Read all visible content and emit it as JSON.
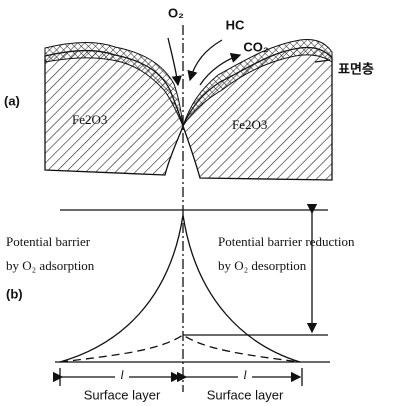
{
  "top": {
    "gases": [
      "O₂",
      "HC",
      "CO₂"
    ],
    "surface_label": "표면층",
    "panel": "(a)",
    "materials": [
      "Fe2O3",
      "Fe2O3"
    ]
  },
  "bottom": {
    "panel": "(b)",
    "left_text": [
      "Potential barrier",
      "by O₂ adsorption"
    ],
    "right_text": [
      "Potential barrier reduction",
      "by O₂ desorption"
    ],
    "widths": [
      "l",
      "l"
    ],
    "layers": [
      "Surface layer",
      "Surface layer"
    ]
  }
}
